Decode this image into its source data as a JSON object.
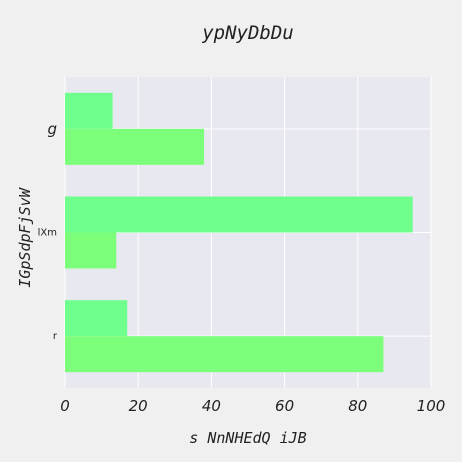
{
  "chart_data": {
    "type": "bar",
    "orientation": "horizontal",
    "title": "ypNyDbDu",
    "xlabel": "s NnNHEdQ iJB",
    "ylabel": "IGpSdpFjSvW",
    "categories": [
      "g",
      "lXm",
      "r"
    ],
    "series": [
      {
        "values": [
          13,
          95,
          17
        ],
        "color": "#6eff8c"
      },
      {
        "values": [
          38,
          14,
          87
        ],
        "color": "#7cff7a"
      }
    ],
    "xlim": [
      0,
      100
    ],
    "xticks": [
      "0",
      "20",
      "40",
      "60",
      "80",
      "100"
    ],
    "grid": true,
    "plot_background": "#e8e8f0",
    "page_background": "#f0f0f0"
  }
}
